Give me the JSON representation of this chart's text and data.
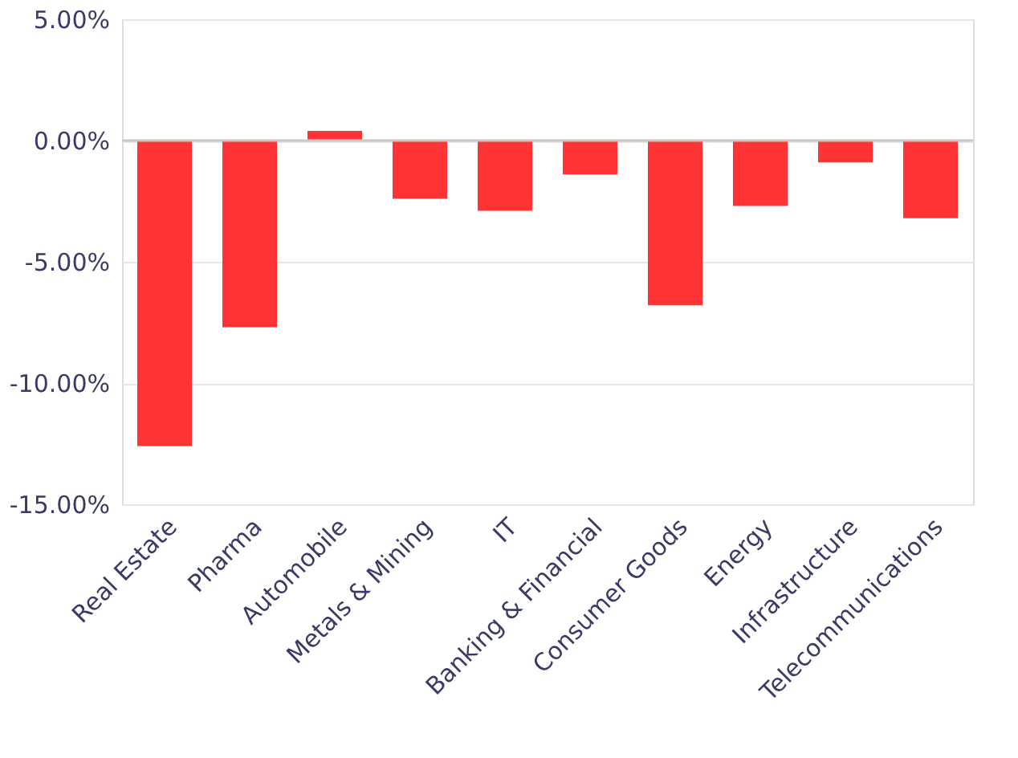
{
  "chart_data": {
    "type": "bar",
    "categories": [
      "Real Estate",
      "Pharma",
      "Automobile",
      "Metals & Mining",
      "IT",
      "Banking & Financial",
      "Consumer Goods",
      "Energy",
      "Infrastructure",
      "Telecommunications"
    ],
    "values": [
      -12.6,
      -7.7,
      0.4,
      -2.4,
      -2.9,
      -1.4,
      -6.8,
      -2.7,
      -0.9,
      -3.2
    ],
    "color": "#fe3434",
    "ylim": [
      -15,
      5
    ],
    "yticks": [
      {
        "value": -15,
        "label": "-15.00%"
      },
      {
        "value": -10,
        "label": "-10.00%"
      },
      {
        "value": -5,
        "label": "-5.00%"
      },
      {
        "value": 0,
        "label": "0.00%"
      },
      {
        "value": 5,
        "label": "5.00%"
      }
    ],
    "grid": "y",
    "ref_lines": [
      {
        "axis": "y",
        "value": 0,
        "color": "#c8c8c8"
      }
    ]
  }
}
